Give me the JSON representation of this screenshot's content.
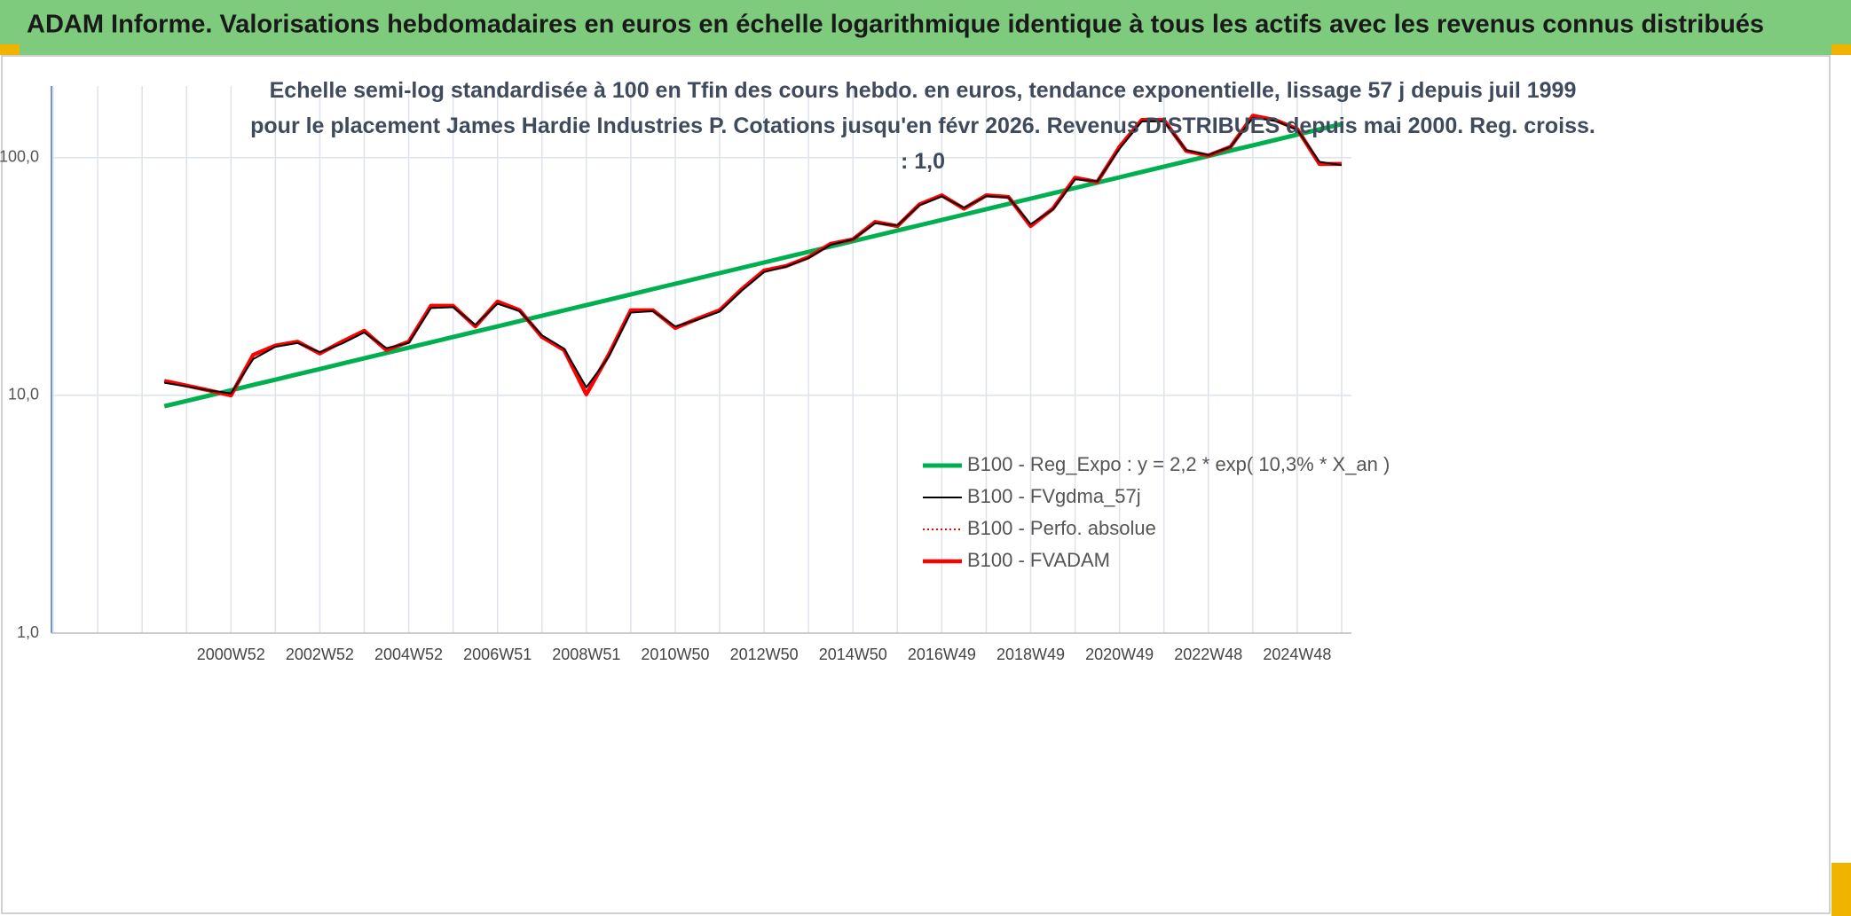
{
  "chart_data": {
    "type": "line",
    "title": "ADAM Informe. Valorisations hebdomadaires en euros en échelle logarithmique identique à tous les actifs avec les revenus connus distribués",
    "subtitle": "Echelle semi-log standardisée à 100 en Tfin des cours hebdo. en euros, tendance exponentielle, lissage 57 j depuis juil 1999 pour le placement James Hardie Industries P. Cotations jusqu'en févr 2026. Revenus DISTRIBUES depuis mai 2000. Reg. croiss. : 1,0",
    "categories": [
      null,
      null,
      null,
      null,
      null,
      null,
      null,
      null,
      "2000W52",
      null,
      null,
      null,
      "2002W52",
      null,
      null,
      null,
      "2004W52",
      null,
      null,
      null,
      "2006W51",
      null,
      null,
      null,
      "2008W51",
      null,
      null,
      null,
      "2010W50",
      null,
      null,
      null,
      "2012W50",
      null,
      null,
      null,
      "2014W50",
      null,
      null,
      null,
      "2016W49",
      null,
      null,
      null,
      "2018W49",
      null,
      null,
      null,
      "2020W49",
      null,
      null,
      null,
      "2022W48",
      null,
      null,
      null,
      "2024W48",
      null,
      null
    ],
    "log_scale": true,
    "ylim": [
      1,
      200
    ],
    "yticks": [
      {
        "value": 1,
        "label": "1,0"
      },
      {
        "value": 10,
        "label": "10,0"
      },
      {
        "value": 100,
        "label": "100,0"
      }
    ],
    "grid": true,
    "legend": "lower right",
    "series": [
      {
        "name": "B100 - Reg_Expo : y = 2,2 * exp( 10,3% *  X_an )",
        "color": "#00b050",
        "style": "solid",
        "width": 5,
        "values": [
          null,
          null,
          null,
          null,
          null,
          9.0,
          9.47,
          9.97,
          10.5,
          11.06,
          11.64,
          12.26,
          12.9,
          13.59,
          14.31,
          15.07,
          15.86,
          16.7,
          17.59,
          18.52,
          19.5,
          20.53,
          21.62,
          22.77,
          23.97,
          25.23,
          26.57,
          27.98,
          29.46,
          31.02,
          32.66,
          34.39,
          36.21,
          38.13,
          40.15,
          42.27,
          44.5,
          46.87,
          49.35,
          51.96,
          54.7,
          57.6,
          60.7,
          63.9,
          67.2,
          70.8,
          74.5,
          78.5,
          82.6,
          87.0,
          91.6,
          96.5,
          101.6,
          107.0,
          112.6,
          118.6,
          124.9,
          131.5,
          138.4
        ]
      },
      {
        "name": "B100 - FVgdma_57j",
        "color": "#000000",
        "style": "solid",
        "width": 2,
        "values": [
          null,
          null,
          null,
          null,
          null,
          11.3,
          10.9,
          10.5,
          10.2,
          14.2,
          16.0,
          16.6,
          15.2,
          16.5,
          18.4,
          15.8,
          16.6,
          23.3,
          23.5,
          19.8,
          24.3,
          22.6,
          17.9,
          15.7,
          10.8,
          14.5,
          22.3,
          22.6,
          19.5,
          20.8,
          22.5,
          27.6,
          33.0,
          34.8,
          37.8,
          43.0,
          45.3,
          53.0,
          51.8,
          63.0,
          68.7,
          61.5,
          68.8,
          68.0,
          52.5,
          60.5,
          81.0,
          79.5,
          109.0,
          142.0,
          142.0,
          107.5,
          102.5,
          111.0,
          147.0,
          143.0,
          131.0,
          96.0,
          93.0
        ]
      },
      {
        "name": "B100 - Perfo. absolue",
        "color": "#ff0000",
        "style": "dotted",
        "width": 2,
        "values": [
          null,
          null,
          null,
          null,
          null,
          11.5,
          11.0,
          10.5,
          10.0,
          14.8,
          16.2,
          16.8,
          15.0,
          16.8,
          18.7,
          15.5,
          16.8,
          23.8,
          23.8,
          19.5,
          24.8,
          22.8,
          17.6,
          15.5,
          10.1,
          14.8,
          22.8,
          22.8,
          19.2,
          21.0,
          22.8,
          28.0,
          33.5,
          35.0,
          38.1,
          43.4,
          45.3,
          53.6,
          51.5,
          63.6,
          69.4,
          61.0,
          69.4,
          68.3,
          51.5,
          61.0,
          82.3,
          79.0,
          111.0,
          144.0,
          144.0,
          106.7,
          102.0,
          111.0,
          150.0,
          144.0,
          132.0,
          94.0,
          94.0
        ]
      },
      {
        "name": "B100 - FVADAM",
        "color": "#ff0000",
        "style": "solid",
        "width": 4.5,
        "values": [
          null,
          null,
          null,
          null,
          null,
          11.5,
          11.0,
          10.5,
          10.0,
          14.8,
          16.2,
          16.8,
          15.0,
          16.8,
          18.7,
          15.5,
          16.8,
          23.8,
          23.8,
          19.5,
          24.8,
          22.8,
          17.6,
          15.5,
          10.1,
          14.8,
          22.8,
          22.8,
          19.2,
          21.0,
          22.8,
          28.0,
          33.5,
          35.0,
          38.1,
          43.4,
          45.3,
          53.6,
          51.5,
          63.6,
          69.4,
          61.0,
          69.4,
          68.3,
          51.5,
          61.0,
          82.3,
          79.0,
          111.0,
          144.0,
          144.0,
          106.7,
          102.0,
          111.0,
          150.0,
          144.0,
          132.0,
          94.0,
          94.0
        ]
      }
    ]
  }
}
